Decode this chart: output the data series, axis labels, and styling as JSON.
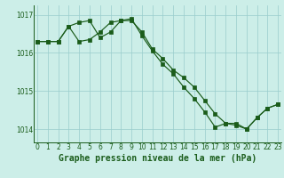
{
  "title": "Graphe pression niveau de la mer (hPa)",
  "bg_color": "#cceee8",
  "plot_bg_color": "#cceee8",
  "line_color": "#1a5c1a",
  "grid_color": "#99cccc",
  "tick_label_color": "#1a5c1a",
  "hours": [
    0,
    1,
    2,
    3,
    4,
    5,
    6,
    7,
    8,
    9,
    10,
    11,
    12,
    13,
    14,
    15,
    16,
    17,
    18,
    19,
    20,
    21,
    22,
    23
  ],
  "line1": [
    1016.3,
    1016.3,
    1016.3,
    1016.7,
    1016.3,
    1016.35,
    1016.55,
    1016.8,
    1016.85,
    1016.85,
    1016.55,
    1016.1,
    1015.85,
    1015.55,
    1015.35,
    1015.1,
    1014.75,
    1014.4,
    1014.15,
    1014.15,
    1014.0,
    1014.3,
    1014.55,
    1014.65
  ],
  "line2": [
    1016.3,
    1016.3,
    1016.3,
    1016.7,
    1016.8,
    1016.85,
    1016.4,
    1016.55,
    1016.85,
    1016.9,
    1016.45,
    1016.05,
    1015.7,
    1015.45,
    1015.1,
    1014.8,
    1014.45,
    1014.05,
    1014.15,
    1014.1,
    1014.0,
    1014.3,
    1014.55,
    1014.65
  ],
  "ylim_min": 1013.65,
  "ylim_max": 1017.25,
  "yticks": [
    1014,
    1015,
    1016,
    1017
  ],
  "ytick_labels": [
    "1014",
    "1015",
    "1016",
    "1017"
  ],
  "xticks": [
    0,
    1,
    2,
    3,
    4,
    5,
    6,
    7,
    8,
    9,
    10,
    11,
    12,
    13,
    14,
    15,
    16,
    17,
    18,
    19,
    20,
    21,
    22,
    23
  ],
  "title_fontsize": 7.0,
  "tick_fontsize": 5.5,
  "marker_size": 2.2,
  "line_width": 0.85
}
